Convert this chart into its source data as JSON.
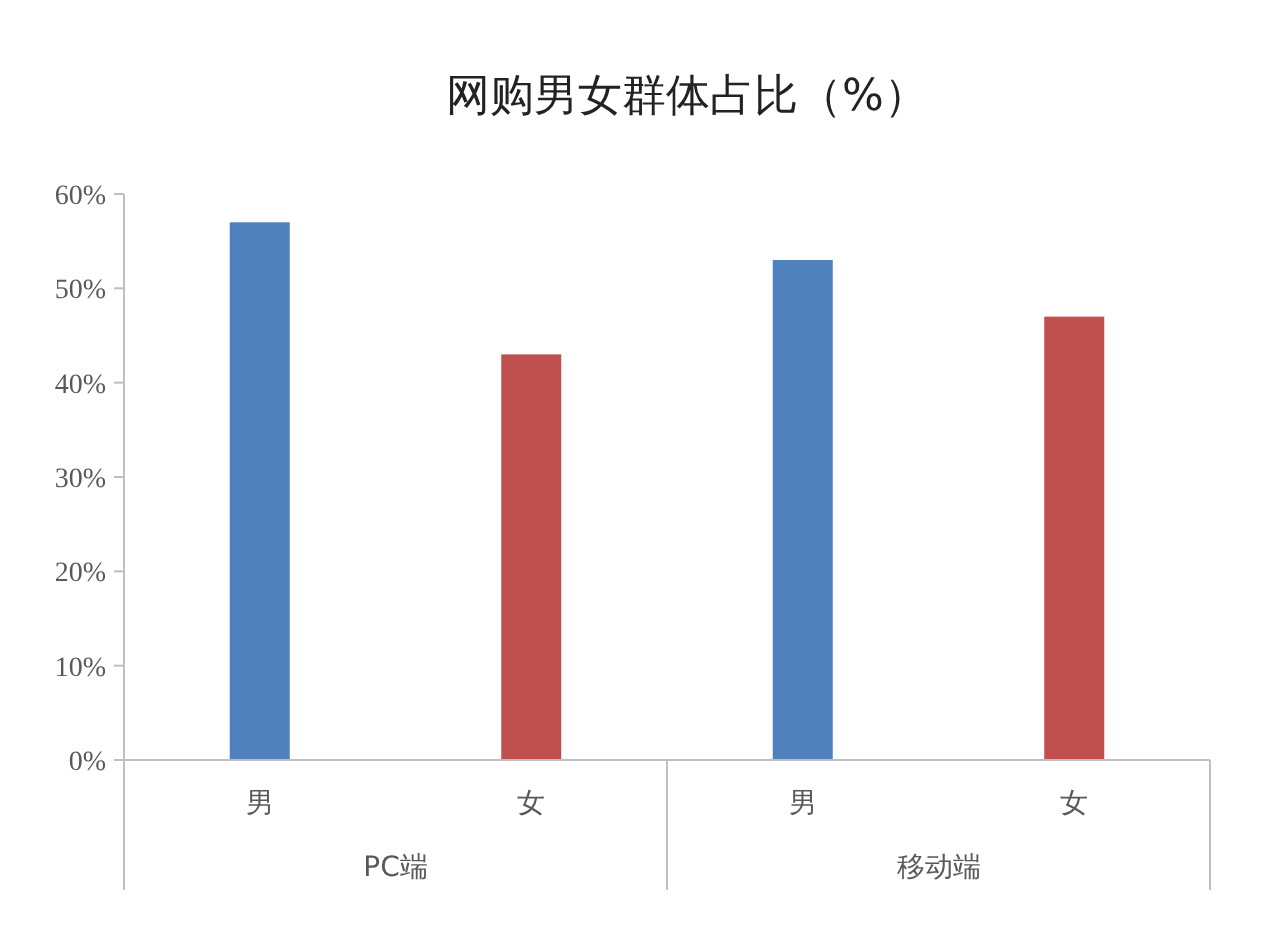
{
  "chart_data": {
    "type": "bar",
    "title": "网购男女群体占比（%）",
    "categories": [
      "男",
      "女",
      "男",
      "女"
    ],
    "values": [
      57,
      43,
      53,
      47
    ],
    "colors": [
      "#4f81bd",
      "#c0504d",
      "#4f81bd",
      "#c0504d"
    ],
    "ylim": [
      0,
      60
    ],
    "yticks": [
      {
        "value": 0,
        "label": "0%"
      },
      {
        "value": 10,
        "label": "10%"
      },
      {
        "value": 20,
        "label": "20%"
      },
      {
        "value": 30,
        "label": "30%"
      },
      {
        "value": 40,
        "label": "40%"
      },
      {
        "value": 50,
        "label": "50%"
      },
      {
        "value": 60,
        "label": "60%"
      }
    ],
    "annotations": [
      "PC端",
      "移动端"
    ]
  }
}
